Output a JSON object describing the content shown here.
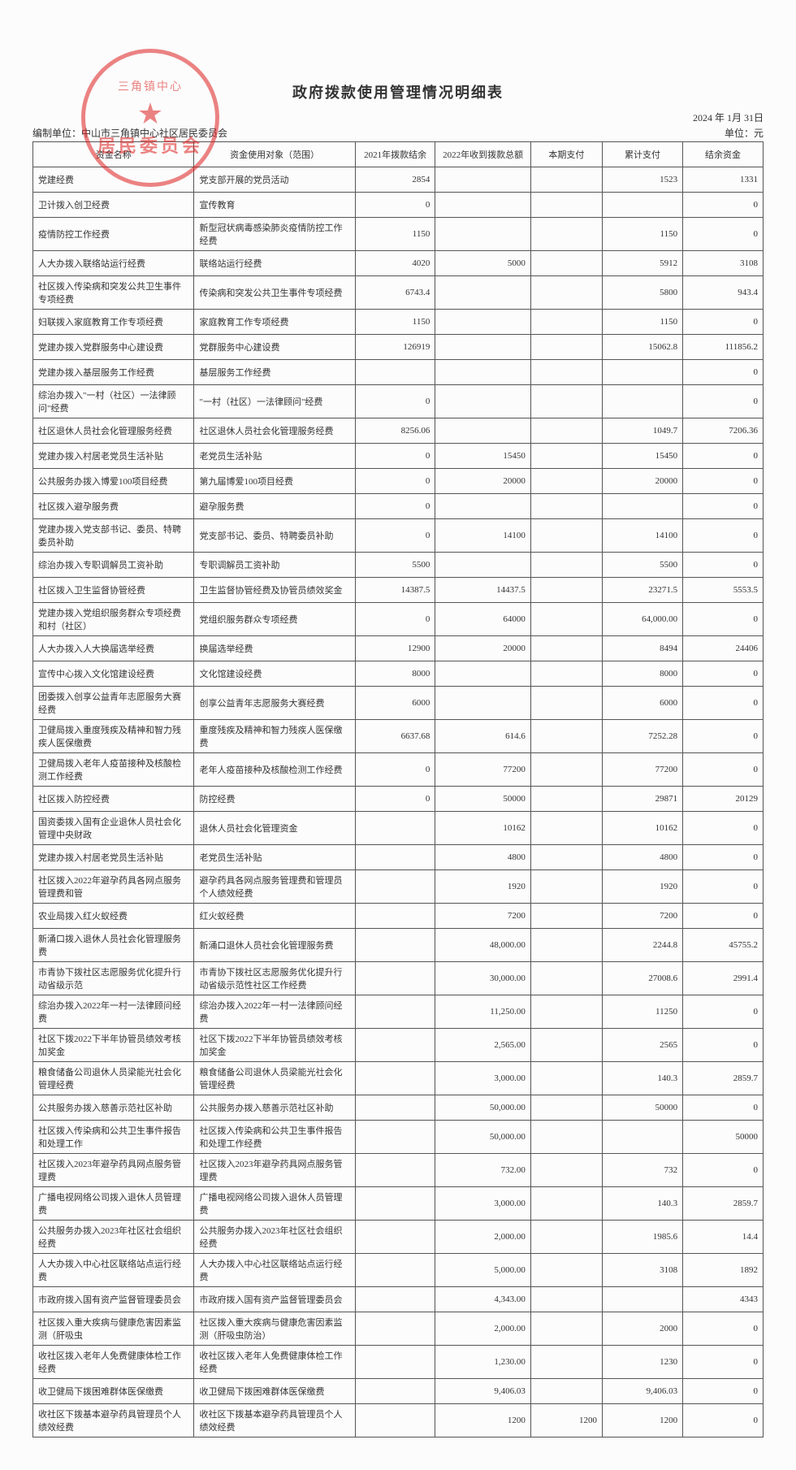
{
  "title": "政府拨款使用管理情况明细表",
  "date": "2024 年 1月 31日",
  "org": "编制单位：中山市三角镇中心社区居民委员会",
  "unit": "单位：元",
  "stamp": {
    "top": "三角镇中心",
    "star": "★",
    "bot": "居民委员会"
  },
  "columns": [
    "资金名称",
    "资金使用对象（范围）",
    "2021年拨款结余",
    "2022年收到拨款总额",
    "本期支付",
    "累计支付",
    "结余资金"
  ],
  "col_widths": [
    "200px",
    "200px",
    "90px",
    "110px",
    "80px",
    "90px",
    "90px"
  ],
  "header_bg": "#fcfcfc",
  "border_color": "#555555",
  "rows": [
    {
      "name": "党建经费",
      "scope": "党支部开展的党员活动",
      "c1": "2854",
      "c2": "",
      "c3": "",
      "c4": "1523",
      "c5": "1331"
    },
    {
      "name": "卫计拨入创卫经费",
      "scope": "宣传教育",
      "c1": "0",
      "c2": "",
      "c3": "",
      "c4": "",
      "c5": "0"
    },
    {
      "name": "疫情防控工作经费",
      "scope": "新型冠状病毒感染肺炎疫情防控工作经费",
      "c1": "1150",
      "c2": "",
      "c3": "",
      "c4": "1150",
      "c5": "0"
    },
    {
      "name": "人大办拨入联络站运行经费",
      "scope": "联络站运行经费",
      "c1": "4020",
      "c2": "5000",
      "c3": "",
      "c4": "5912",
      "c5": "3108"
    },
    {
      "name": "社区拨入传染病和突发公共卫生事件专项经费",
      "scope": "传染病和突发公共卫生事件专项经费",
      "c1": "6743.4",
      "c2": "",
      "c3": "",
      "c4": "5800",
      "c5": "943.4"
    },
    {
      "name": "妇联拨入家庭教育工作专项经费",
      "scope": "家庭教育工作专项经费",
      "c1": "1150",
      "c2": "",
      "c3": "",
      "c4": "1150",
      "c5": "0"
    },
    {
      "name": "党建办拨入党群服务中心建设费",
      "scope": "党群服务中心建设费",
      "c1": "126919",
      "c2": "",
      "c3": "",
      "c4": "15062.8",
      "c5": "111856.2"
    },
    {
      "name": "党建办拨入基层服务工作经费",
      "scope": "基层服务工作经费",
      "c1": "",
      "c2": "",
      "c3": "",
      "c4": "",
      "c5": "0"
    },
    {
      "name": "综治办拨入\"一村（社区）一法律顾问\"经费",
      "scope": "\"一村（社区）一法律顾问\"经费",
      "c1": "0",
      "c2": "",
      "c3": "",
      "c4": "",
      "c5": "0"
    },
    {
      "name": "社区退休人员社会化管理服务经费",
      "scope": "社区退休人员社会化管理服务经费",
      "c1": "8256.06",
      "c2": "",
      "c3": "",
      "c4": "1049.7",
      "c5": "7206.36"
    },
    {
      "name": "党建办拨入村居老党员生活补贴",
      "scope": "老党员生活补贴",
      "c1": "0",
      "c2": "15450",
      "c3": "",
      "c4": "15450",
      "c5": "0"
    },
    {
      "name": "公共服务办拨入博爱100项目经费",
      "scope": "第九届博爱100项目经费",
      "c1": "0",
      "c2": "20000",
      "c3": "",
      "c4": "20000",
      "c5": "0"
    },
    {
      "name": "社区拨入避孕服务费",
      "scope": "避孕服务费",
      "c1": "0",
      "c2": "",
      "c3": "",
      "c4": "",
      "c5": "0"
    },
    {
      "name": "党建办拨入党支部书记、委员、特聘委员补助",
      "scope": "党支部书记、委员、特聘委员补助",
      "c1": "0",
      "c2": "14100",
      "c3": "",
      "c4": "14100",
      "c5": "0"
    },
    {
      "name": "综治办拨入专职调解员工资补助",
      "scope": "专职调解员工资补助",
      "c1": "5500",
      "c2": "",
      "c3": "",
      "c4": "5500",
      "c5": "0"
    },
    {
      "name": "社区拨入卫生监督协管经费",
      "scope": "卫生监督协管经费及协管员绩效奖金",
      "c1": "14387.5",
      "c2": "14437.5",
      "c3": "",
      "c4": "23271.5",
      "c5": "5553.5"
    },
    {
      "name": "党建办拨入党组织服务群众专项经费和村（社区）",
      "scope": "党组织服务群众专项经费",
      "c1": "0",
      "c2": "64000",
      "c3": "",
      "c4": "64,000.00",
      "c5": "0"
    },
    {
      "name": "人大办拨入人大换届选举经费",
      "scope": "换届选举经费",
      "c1": "12900",
      "c2": "20000",
      "c3": "",
      "c4": "8494",
      "c5": "24406"
    },
    {
      "name": "宣传中心拨入文化馆建设经费",
      "scope": "文化馆建设经费",
      "c1": "8000",
      "c2": "",
      "c3": "",
      "c4": "8000",
      "c5": "0"
    },
    {
      "name": "团委拨入创享公益青年志愿服务大赛经费",
      "scope": "创享公益青年志愿服务大赛经费",
      "c1": "6000",
      "c2": "",
      "c3": "",
      "c4": "6000",
      "c5": "0"
    },
    {
      "name": "卫健局拨入重度残疾及精神和智力残疾人医保缴费",
      "scope": "重度残疾及精神和智力残疾人医保缴费",
      "c1": "6637.68",
      "c2": "614.6",
      "c3": "",
      "c4": "7252.28",
      "c5": "0"
    },
    {
      "name": "卫健局拨入老年人疫苗接种及核酸检测工作经费",
      "scope": "老年人疫苗接种及核酸检测工作经费",
      "c1": "0",
      "c2": "77200",
      "c3": "",
      "c4": "77200",
      "c5": "0"
    },
    {
      "name": "社区拨入防控经费",
      "scope": "防控经费",
      "c1": "0",
      "c2": "50000",
      "c3": "",
      "c4": "29871",
      "c5": "20129"
    },
    {
      "name": "国资委拨入国有企业退休人员社会化管理中央财政",
      "scope": "退休人员社会化管理资金",
      "c1": "",
      "c2": "10162",
      "c3": "",
      "c4": "10162",
      "c5": "0"
    },
    {
      "name": "党建办拨入村居老党员生活补贴",
      "scope": "老党员生活补贴",
      "c1": "",
      "c2": "4800",
      "c3": "",
      "c4": "4800",
      "c5": "0"
    },
    {
      "name": "社区拨入2022年避孕药具各网点服务管理费和管",
      "scope": "避孕药具各网点服务管理费和管理员个人绩效经费",
      "c1": "",
      "c2": "1920",
      "c3": "",
      "c4": "1920",
      "c5": "0"
    },
    {
      "name": "农业局拨入红火蚁经费",
      "scope": "红火蚁经费",
      "c1": "",
      "c2": "7200",
      "c3": "",
      "c4": "7200",
      "c5": "0"
    },
    {
      "name": "新涌口拨入退休人员社会化管理服务费",
      "scope": "新涌口退休人员社会化管理服务费",
      "c1": "",
      "c2": "48,000.00",
      "c3": "",
      "c4": "2244.8",
      "c5": "45755.2"
    },
    {
      "name": "市青协下拨社区志愿服务优化提升行动省级示范",
      "scope": "市青协下拨社区志愿服务优化提升行动省级示范性社区工作经费",
      "c1": "",
      "c2": "30,000.00",
      "c3": "",
      "c4": "27008.6",
      "c5": "2991.4"
    },
    {
      "name": "综治办拨入2022年一村一法律顾问经费",
      "scope": "综治办拨入2022年一村一法律顾问经费",
      "c1": "",
      "c2": "11,250.00",
      "c3": "",
      "c4": "11250",
      "c5": "0"
    },
    {
      "name": "社区下拨2022下半年协管员绩效考核加奖金",
      "scope": "社区下拨2022下半年协管员绩效考核加奖金",
      "c1": "",
      "c2": "2,565.00",
      "c3": "",
      "c4": "2565",
      "c5": "0"
    },
    {
      "name": "粮食储备公司退休人员梁能光社会化管理经费",
      "scope": "粮食储备公司退休人员梁能光社会化管理经费",
      "c1": "",
      "c2": "3,000.00",
      "c3": "",
      "c4": "140.3",
      "c5": "2859.7"
    },
    {
      "name": "公共服务办拨入慈善示范社区补助",
      "scope": "公共服务办拨入慈善示范社区补助",
      "c1": "",
      "c2": "50,000.00",
      "c3": "",
      "c4": "50000",
      "c5": "0"
    },
    {
      "name": "社区拨入传染病和公共卫生事件报告和处理工作",
      "scope": "社区拨入传染病和公共卫生事件报告和处理工作经费",
      "c1": "",
      "c2": "50,000.00",
      "c3": "",
      "c4": "",
      "c5": "50000"
    },
    {
      "name": "社区拨入2023年避孕药具网点服务管理费",
      "scope": "社区拨入2023年避孕药具网点服务管理费",
      "c1": "",
      "c2": "732.00",
      "c3": "",
      "c4": "732",
      "c5": "0"
    },
    {
      "name": "广播电视网络公司拨入退休人员管理费",
      "scope": "广播电视网络公司拨入退休人员管理费",
      "c1": "",
      "c2": "3,000.00",
      "c3": "",
      "c4": "140.3",
      "c5": "2859.7"
    },
    {
      "name": "公共服务办拨入2023年社区社会组织经费",
      "scope": "公共服务办拨入2023年社区社会组织经费",
      "c1": "",
      "c2": "2,000.00",
      "c3": "",
      "c4": "1985.6",
      "c5": "14.4"
    },
    {
      "name": "人大办拨入中心社区联络站点运行经费",
      "scope": "人大办拨入中心社区联络站点运行经费",
      "c1": "",
      "c2": "5,000.00",
      "c3": "",
      "c4": "3108",
      "c5": "1892"
    },
    {
      "name": "市政府拨入国有资产监督管理委员会",
      "scope": "市政府拨入国有资产监督管理委员会",
      "c1": "",
      "c2": "4,343.00",
      "c3": "",
      "c4": "",
      "c5": "4343"
    },
    {
      "name": "社区拨入重大疾病与健康危害因素监测（肝吸虫",
      "scope": "社区拨入重大疾病与健康危害因素监测（肝吸虫防治）",
      "c1": "",
      "c2": "2,000.00",
      "c3": "",
      "c4": "2000",
      "c5": "0"
    },
    {
      "name": "收社区拨入老年人免费健康体检工作经费",
      "scope": "收社区拨入老年人免费健康体检工作经费",
      "c1": "",
      "c2": "1,230.00",
      "c3": "",
      "c4": "1230",
      "c5": "0"
    },
    {
      "name": "收卫健局下拨困难群体医保缴费",
      "scope": "收卫健局下拨困难群体医保缴费",
      "c1": "",
      "c2": "9,406.03",
      "c3": "",
      "c4": "9,406.03",
      "c5": "0"
    },
    {
      "name": "收社区下拨基本避孕药具管理员个人绩效经费",
      "scope": "收社区下拨基本避孕药具管理员个人绩效经费",
      "c1": "",
      "c2": "1200",
      "c3": "1200",
      "c4": "1200",
      "c5": "0"
    }
  ]
}
